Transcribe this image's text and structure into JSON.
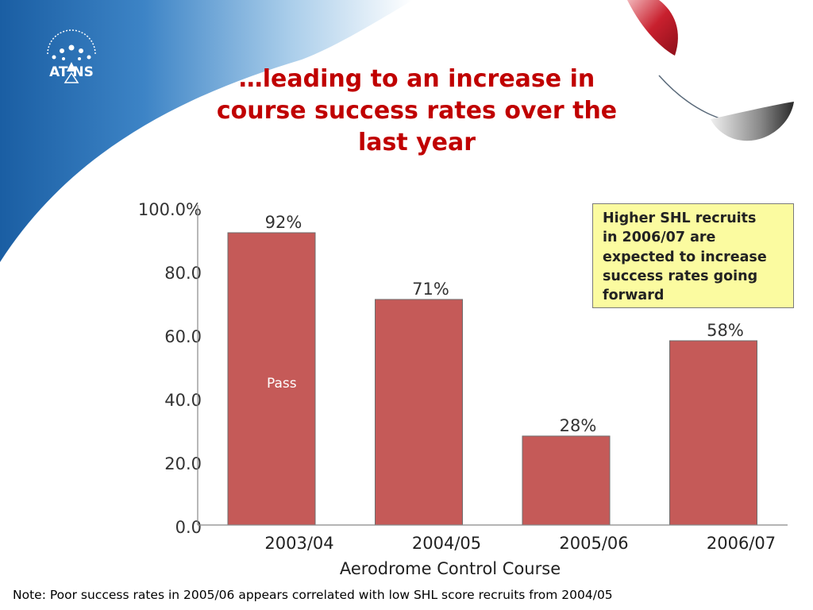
{
  "theme": {
    "bar_color": "#c55a58",
    "title_color": "#c00000",
    "callout_bg": "#fbfba0",
    "swoosh_blue": "#1a5ea3",
    "swoosh_red": "#c8202e"
  },
  "logo": {
    "text": "AT  NS"
  },
  "title": {
    "lines": [
      "…leading to an increase in",
      "course success rates over the",
      "last year"
    ]
  },
  "callout": {
    "lines": [
      "Higher SHL recruits",
      "in 2006/07 are",
      "expected to increase",
      "success rates going",
      "forward"
    ]
  },
  "note": "Note: Poor success rates in 2005/06 appears correlated with low SHL score recruits from 2004/05",
  "chart_data": {
    "type": "bar",
    "categories": [
      "2003/04",
      "2004/05",
      "2005/06",
      "2006/07"
    ],
    "values": [
      92,
      71,
      28,
      58
    ],
    "data_labels": [
      "92%",
      "71%",
      "28%",
      "58%"
    ],
    "series": [
      {
        "name": "Pass",
        "values": [
          92,
          71,
          28,
          58
        ]
      }
    ],
    "xlabel": "Aerodrome Control Course",
    "ylabel": "",
    "ylim": [
      0,
      100
    ],
    "yticks": [
      0,
      20,
      40,
      60,
      80,
      100
    ],
    "ytick_labels": [
      "0.0",
      "20.0",
      "40.0",
      "60.0",
      "80.0",
      "100.0%"
    ],
    "grid": false,
    "legend": "inside-bar"
  }
}
